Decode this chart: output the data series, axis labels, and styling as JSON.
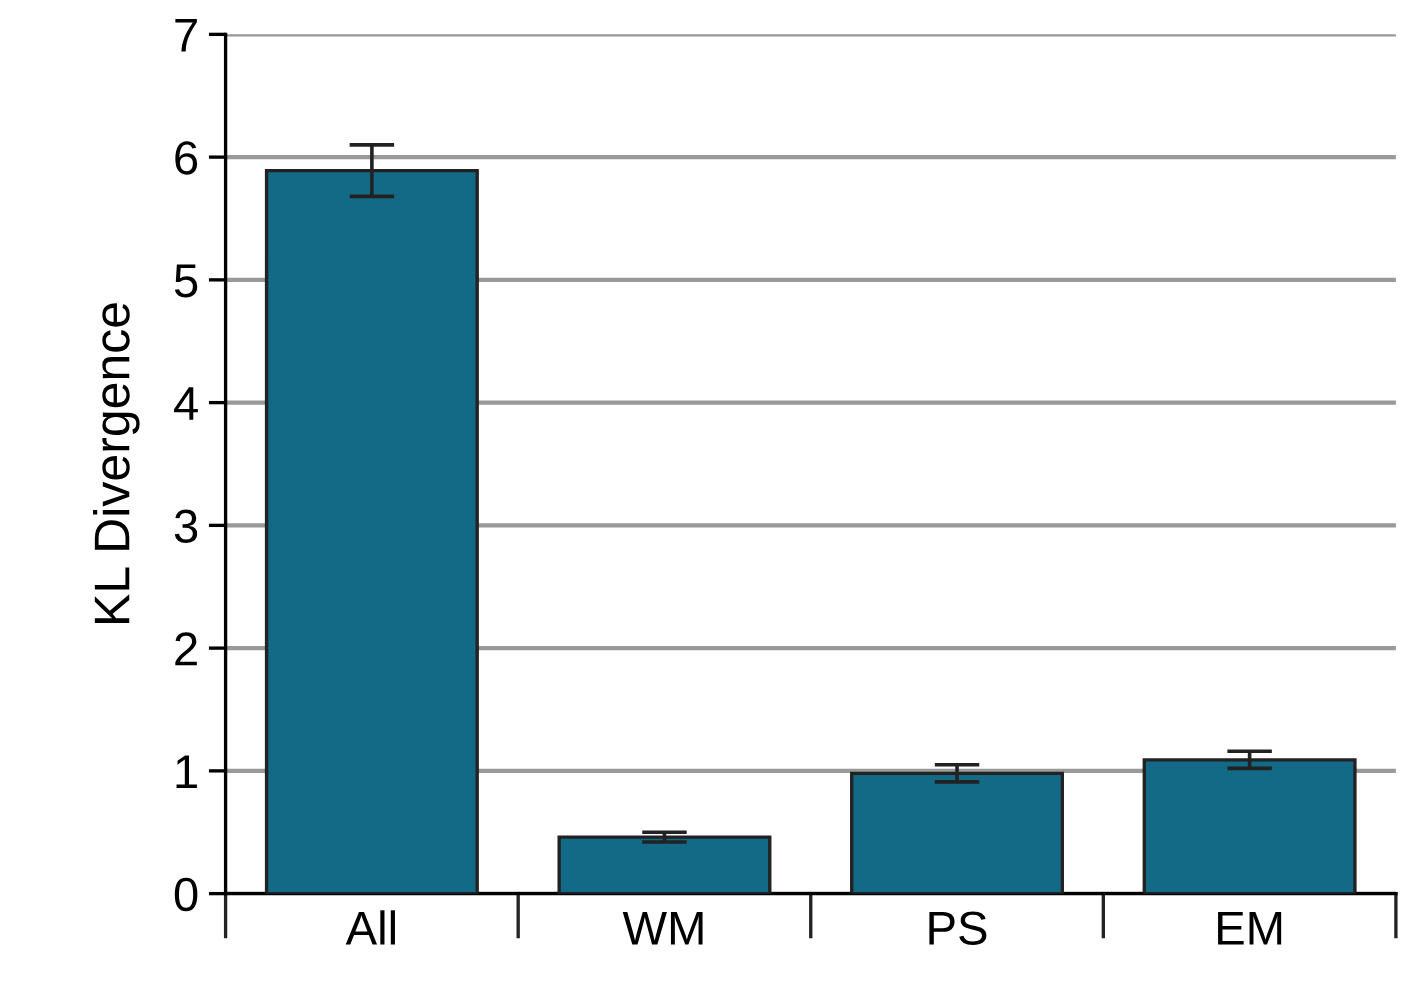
{
  "chart_data": {
    "type": "bar",
    "ylabel": "KL Divergence",
    "categories": [
      "All",
      "WM",
      "PS",
      "EM"
    ],
    "values": [
      5.89,
      0.46,
      0.98,
      1.09
    ],
    "errors": [
      0.21,
      0.04,
      0.07,
      0.07
    ],
    "color": "#136a87",
    "ylim": [
      0,
      7
    ],
    "yticks": [
      0,
      1,
      2,
      3,
      4,
      5,
      6,
      7
    ],
    "grid": "y"
  }
}
